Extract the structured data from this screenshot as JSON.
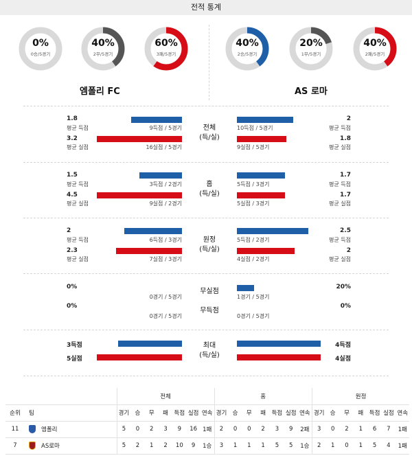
{
  "header": {
    "title": "전적 통계"
  },
  "teams": {
    "home": "엠폴리 FC",
    "away": "AS 로마"
  },
  "donuts": [
    {
      "pct": "0%",
      "sub": "0승/5경기",
      "fraction": 0.0,
      "color": "#d60c16"
    },
    {
      "pct": "40%",
      "sub": "2무/5경기",
      "fraction": 0.4,
      "color": "#555555"
    },
    {
      "pct": "60%",
      "sub": "3패/5경기",
      "fraction": 0.6,
      "color": "#d60c16"
    },
    {
      "pct": "40%",
      "sub": "2승/5경기",
      "fraction": 0.4,
      "color": "#1f5fa8"
    },
    {
      "pct": "20%",
      "sub": "1무/5경기",
      "fraction": 0.2,
      "color": "#555555"
    },
    {
      "pct": "40%",
      "sub": "2패/5경기",
      "fraction": 0.4,
      "color": "#d60c16"
    }
  ],
  "labels": {
    "avg_scored": "평균 득점",
    "avg_conceded": "평균 실점"
  },
  "sections": {
    "overall": {
      "title1": "전체",
      "title2": "(득/실)",
      "home_scored": "1.8",
      "home_conceded": "3.2",
      "home_scored_bar": "9득점 / 5경기",
      "home_conceded_bar": "16실점 / 5경기",
      "away_scored": "2",
      "away_conceded": "1.8",
      "away_scored_bar": "10득점 / 5경기",
      "away_conceded_bar": "9실점 / 5경기"
    },
    "home": {
      "title1": "홈",
      "title2": "(득/실)",
      "home_scored": "1.5",
      "home_conceded": "4.5",
      "home_scored_bar": "3득점 / 2경기",
      "home_conceded_bar": "9실점 / 2경기",
      "away_scored": "1.7",
      "away_conceded": "1.7",
      "away_scored_bar": "5득점 / 3경기",
      "away_conceded_bar": "5실점 / 3경기"
    },
    "away": {
      "title1": "원정",
      "title2": "(득/실)",
      "home_scored": "2",
      "home_conceded": "2.3",
      "home_scored_bar": "6득점 / 3경기",
      "home_conceded_bar": "7실점 / 3경기",
      "away_scored": "2.5",
      "away_conceded": "2",
      "away_scored_bar": "5득점 / 2경기",
      "away_conceded_bar": "4실점 / 2경기"
    },
    "clean": {
      "title_noconc": "무실점",
      "title_noscore": "무득점",
      "home_noconc": "0%",
      "home_noscore": "0%",
      "home_noconc_bar": "0경기 / 5경기",
      "home_noscore_bar": "0경기 / 5경기",
      "away_noconc": "20%",
      "away_noscore": "0%",
      "away_noconc_bar": "1경기 / 5경기",
      "away_noscore_bar": "0경기 / 5경기"
    },
    "max": {
      "title1": "최대",
      "title2": "(득/실)",
      "home_scored": "3득점",
      "home_conceded": "5실점",
      "away_scored": "4득점",
      "away_conceded": "4실점"
    }
  },
  "standings": {
    "groups": [
      "전체",
      "홈",
      "원정"
    ],
    "rank_header": "순위",
    "team_header": "팀",
    "cols": [
      "경기",
      "승",
      "무",
      "패",
      "득점",
      "실점",
      "연속"
    ],
    "rows": [
      {
        "rank": "11",
        "team": "엠폴리",
        "overall": [
          "5",
          "0",
          "2",
          "3",
          "9",
          "16",
          "1패"
        ],
        "home": [
          "2",
          "0",
          "0",
          "2",
          "3",
          "9",
          "2패"
        ],
        "away": [
          "3",
          "0",
          "2",
          "1",
          "6",
          "7",
          "1패"
        ]
      },
      {
        "rank": "7",
        "team": "AS로마",
        "overall": [
          "5",
          "2",
          "1",
          "2",
          "10",
          "9",
          "1승"
        ],
        "home": [
          "3",
          "1",
          "1",
          "1",
          "5",
          "5",
          "1승"
        ],
        "away": [
          "2",
          "1",
          "0",
          "1",
          "5",
          "4",
          "1패"
        ]
      }
    ]
  }
}
